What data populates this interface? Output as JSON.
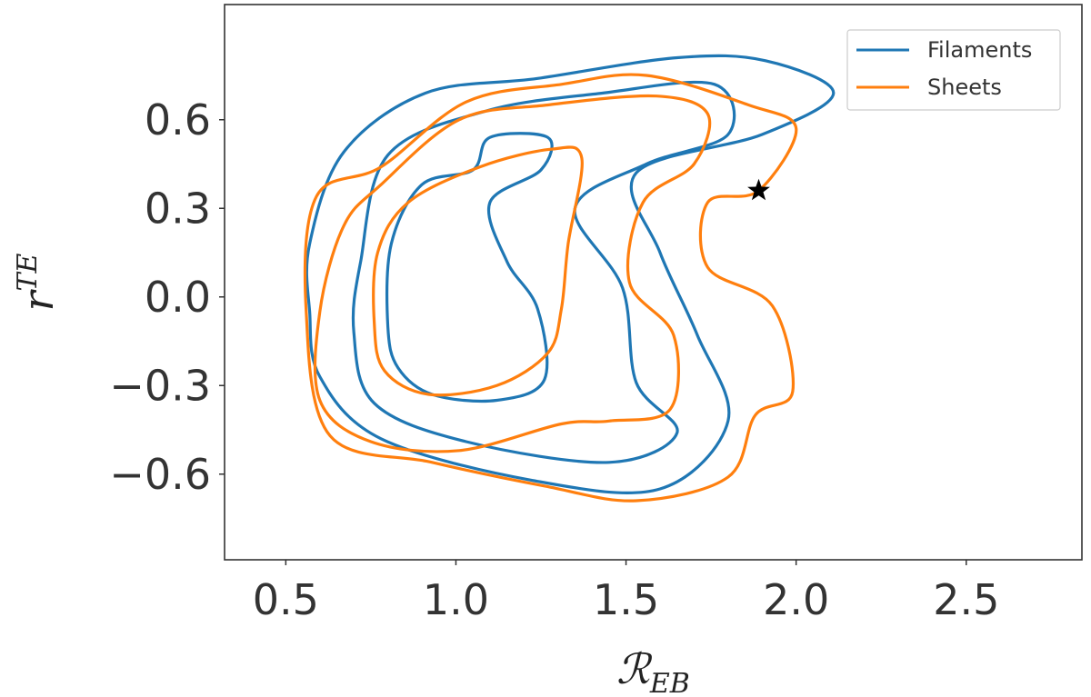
{
  "chart_data": {
    "type": "line",
    "chart_kind": "contour",
    "title": "",
    "xlabel": "ℛ",
    "xlabel_sub": "EB",
    "ylabel": "r",
    "ylabel_sup": "TE",
    "xlim": [
      0.32,
      2.84
    ],
    "ylim": [
      -0.89,
      0.99
    ],
    "x_ticks": [
      0.5,
      1.0,
      1.5,
      2.0,
      2.5
    ],
    "x_tick_labels": [
      "0.5",
      "1.0",
      "1.5",
      "2.0",
      "2.5"
    ],
    "y_ticks": [
      0.6,
      0.3,
      0.0,
      -0.3,
      -0.6
    ],
    "y_tick_labels": [
      "0.6",
      "0.3",
      "0.0",
      "−0.3",
      "−0.6"
    ],
    "grid": false,
    "legend_position": "top-right",
    "series": [
      {
        "name": "Filaments",
        "color": "#1f77b4",
        "contours": [
          [
            [
              0.57,
              0.18
            ],
            [
              0.67,
              0.49
            ],
            [
              0.91,
              0.69
            ],
            [
              1.24,
              0.74
            ],
            [
              1.65,
              0.81
            ],
            [
              1.91,
              0.8
            ],
            [
              2.11,
              0.69
            ],
            [
              1.9,
              0.55
            ],
            [
              1.53,
              0.42
            ],
            [
              1.6,
              0.15
            ],
            [
              1.71,
              -0.13
            ],
            [
              1.8,
              -0.42
            ],
            [
              1.6,
              -0.65
            ],
            [
              1.22,
              -0.62
            ],
            [
              0.78,
              -0.48
            ],
            [
              0.6,
              -0.27
            ],
            [
              0.57,
              -0.05
            ],
            [
              0.57,
              0.18
            ]
          ],
          [
            [
              0.72,
              0.12
            ],
            [
              0.8,
              0.48
            ],
            [
              1.09,
              0.63
            ],
            [
              1.43,
              0.69
            ],
            [
              1.76,
              0.72
            ],
            [
              1.8,
              0.55
            ],
            [
              1.56,
              0.45
            ],
            [
              1.35,
              0.3
            ],
            [
              1.49,
              0.03
            ],
            [
              1.53,
              -0.29
            ],
            [
              1.65,
              -0.46
            ],
            [
              1.45,
              -0.56
            ],
            [
              1.03,
              -0.49
            ],
            [
              0.76,
              -0.36
            ],
            [
              0.7,
              -0.12
            ],
            [
              0.72,
              0.12
            ]
          ],
          [
            [
              0.8,
              -0.1
            ],
            [
              0.81,
              0.18
            ],
            [
              0.9,
              0.38
            ],
            [
              1.05,
              0.43
            ],
            [
              1.1,
              0.54
            ],
            [
              1.27,
              0.54
            ],
            [
              1.25,
              0.43
            ],
            [
              1.1,
              0.32
            ],
            [
              1.15,
              0.12
            ],
            [
              1.24,
              -0.04
            ],
            [
              1.26,
              -0.28
            ],
            [
              1.12,
              -0.35
            ],
            [
              0.93,
              -0.33
            ],
            [
              0.83,
              -0.24
            ],
            [
              0.8,
              -0.1
            ]
          ]
        ]
      },
      {
        "name": "Sheets",
        "color": "#ff7f0e",
        "contours": [
          [
            [
              0.63,
              -0.47
            ],
            [
              0.56,
              -0.05
            ],
            [
              0.59,
              0.34
            ],
            [
              0.78,
              0.44
            ],
            [
              1.03,
              0.66
            ],
            [
              1.31,
              0.72
            ],
            [
              1.56,
              0.75
            ],
            [
              1.86,
              0.65
            ],
            [
              2.0,
              0.57
            ],
            [
              1.89,
              0.36
            ],
            [
              1.74,
              0.32
            ],
            [
              1.74,
              0.1
            ],
            [
              1.93,
              -0.03
            ],
            [
              1.99,
              -0.32
            ],
            [
              1.88,
              -0.4
            ],
            [
              1.8,
              -0.61
            ],
            [
              1.53,
              -0.69
            ],
            [
              1.26,
              -0.64
            ],
            [
              0.93,
              -0.56
            ],
            [
              0.63,
              -0.47
            ]
          ],
          [
            [
              0.6,
              -0.35
            ],
            [
              0.6,
              -0.05
            ],
            [
              0.67,
              0.24
            ],
            [
              0.78,
              0.38
            ],
            [
              1.01,
              0.6
            ],
            [
              1.27,
              0.65
            ],
            [
              1.59,
              0.68
            ],
            [
              1.74,
              0.62
            ],
            [
              1.7,
              0.45
            ],
            [
              1.55,
              0.32
            ],
            [
              1.51,
              0.05
            ],
            [
              1.64,
              -0.13
            ],
            [
              1.63,
              -0.38
            ],
            [
              1.45,
              -0.42
            ],
            [
              1.31,
              -0.43
            ],
            [
              1.01,
              -0.52
            ],
            [
              0.75,
              -0.49
            ],
            [
              0.6,
              -0.35
            ]
          ],
          [
            [
              0.77,
              0.15
            ],
            [
              0.86,
              0.32
            ],
            [
              1.07,
              0.44
            ],
            [
              1.28,
              0.5
            ],
            [
              1.37,
              0.47
            ],
            [
              1.33,
              0.18
            ],
            [
              1.31,
              -0.04
            ],
            [
              1.27,
              -0.19
            ],
            [
              1.12,
              -0.3
            ],
            [
              0.92,
              -0.33
            ],
            [
              0.79,
              -0.25
            ],
            [
              0.76,
              -0.09
            ],
            [
              0.77,
              0.15
            ]
          ]
        ]
      }
    ],
    "markers": [
      {
        "type": "star",
        "x": 1.89,
        "y": 0.36,
        "color": "#000000"
      }
    ]
  }
}
